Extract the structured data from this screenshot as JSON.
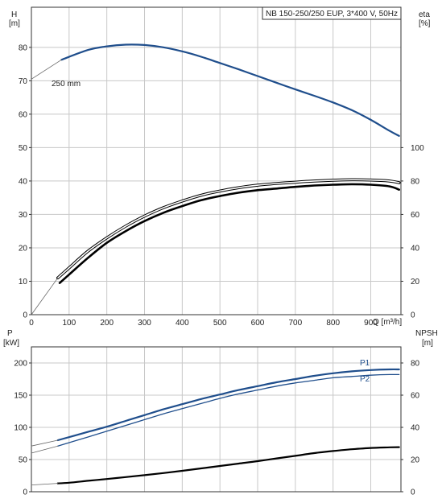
{
  "colors": {
    "background": "#ffffff",
    "grid": "#c8c8c8",
    "axis": "#333333",
    "curve_blue": "#1f4e8c",
    "curve_black": "#000000",
    "thin": "#666666"
  },
  "chart_data": [
    {
      "type": "line",
      "title": "NB 150-250/250 EUP, 3*400 V, 50Hz",
      "xlabel": "Q [m³/h]",
      "xlim": [
        0,
        980
      ],
      "xticks": [
        0,
        100,
        200,
        300,
        400,
        500,
        600,
        700,
        800,
        900
      ],
      "grid": true,
      "left_axis": {
        "label_line1": "H",
        "label_line2": "[m]",
        "ylim": [
          0,
          92
        ],
        "ticks": [
          0,
          10,
          20,
          30,
          40,
          50,
          60,
          70,
          80
        ]
      },
      "right_axis": {
        "label_line1": "eta",
        "label_line2": "[%]",
        "ylim": [
          0,
          184
        ],
        "ticks": [
          0,
          20,
          40,
          60,
          80,
          100
        ]
      },
      "annotations": [
        {
          "text": "250 mm"
        }
      ],
      "series": [
        {
          "axis": "left",
          "style": "blue",
          "x": [
            80,
            150,
            200,
            250,
            300,
            350,
            400,
            450,
            500,
            550,
            600,
            650,
            700,
            750,
            800,
            850,
            900,
            950,
            975
          ],
          "y": [
            76.3,
            79.2,
            80.3,
            80.8,
            80.7,
            80.0,
            78.8,
            77.2,
            75.3,
            73.4,
            71.4,
            69.4,
            67.4,
            65.5,
            63.5,
            61.2,
            58.3,
            55.0,
            53.5
          ]
        },
        {
          "axis": "left",
          "style": "thin",
          "x": [
            0,
            80
          ],
          "y": [
            70.5,
            76.3
          ]
        },
        {
          "axis": "right",
          "style": "outline",
          "x": [
            70,
            100,
            150,
            200,
            250,
            300,
            350,
            400,
            450,
            500,
            550,
            600,
            650,
            700,
            750,
            800,
            850,
            900,
            950,
            975
          ],
          "y": [
            22,
            28,
            38,
            46,
            53,
            59,
            64,
            68,
            71.5,
            74,
            76,
            77.5,
            78.5,
            79.3,
            80,
            80.5,
            80.8,
            80.6,
            80,
            79
          ]
        },
        {
          "axis": "right",
          "style": "bold",
          "x": [
            75,
            100,
            150,
            200,
            250,
            300,
            350,
            400,
            450,
            500,
            550,
            600,
            650,
            700,
            750,
            800,
            850,
            900,
            950,
            975
          ],
          "y": [
            19,
            24,
            34,
            43,
            50,
            56,
            61,
            65,
            68.5,
            71,
            73,
            74.5,
            75.5,
            76.5,
            77.3,
            77.8,
            78.1,
            77.8,
            76.8,
            74.8
          ]
        },
        {
          "axis": "right",
          "style": "thin",
          "x": [
            0,
            70
          ],
          "y": [
            0,
            22
          ]
        }
      ]
    },
    {
      "type": "line",
      "xlim": [
        0,
        980
      ],
      "grid": true,
      "left_axis": {
        "label_line1": "P",
        "label_line2": "[kW]",
        "ylim": [
          0,
          225
        ],
        "ticks": [
          0,
          50,
          100,
          150,
          200
        ]
      },
      "right_axis": {
        "label_line1": "NPSH",
        "label_line2": "[m]",
        "ylim": [
          0,
          90
        ],
        "ticks": [
          0,
          20,
          40,
          60,
          80
        ]
      },
      "series": [
        {
          "axis": "left",
          "name": "P1",
          "style": "blue",
          "x": [
            70,
            150,
            200,
            250,
            300,
            350,
            400,
            450,
            500,
            550,
            600,
            650,
            700,
            750,
            800,
            850,
            900,
            950,
            975
          ],
          "y": [
            80,
            93,
            101,
            110,
            119,
            128,
            136,
            144,
            151,
            158,
            164,
            170,
            175,
            180,
            184,
            187,
            189,
            190,
            190
          ]
        },
        {
          "axis": "left",
          "name": "P2",
          "style": "blue_thin",
          "x": [
            70,
            150,
            200,
            250,
            300,
            350,
            400,
            450,
            500,
            550,
            600,
            650,
            700,
            750,
            800,
            850,
            900,
            950,
            975
          ],
          "y": [
            71,
            85,
            94,
            103,
            112,
            121,
            129,
            137,
            145,
            152,
            158,
            164,
            169,
            173,
            177,
            179,
            181,
            182,
            182
          ]
        },
        {
          "axis": "left",
          "style": "thin",
          "x": [
            0,
            70
          ],
          "y": [
            71,
            80
          ]
        },
        {
          "axis": "left",
          "style": "thin",
          "x": [
            0,
            70
          ],
          "y": [
            60,
            71
          ]
        },
        {
          "axis": "right",
          "style": "black",
          "x": [
            70,
            100,
            150,
            200,
            250,
            300,
            350,
            400,
            450,
            500,
            550,
            600,
            650,
            700,
            750,
            800,
            850,
            900,
            950,
            975
          ],
          "y": [
            5.2,
            5.6,
            6.8,
            7.9,
            9.1,
            10.3,
            11.6,
            13.0,
            14.5,
            16.0,
            17.5,
            19.0,
            20.7,
            22.3,
            24.0,
            25.3,
            26.4,
            27.2,
            27.6,
            27.7
          ]
        },
        {
          "axis": "right",
          "style": "thin",
          "x": [
            0,
            70
          ],
          "y": [
            4.2,
            5.2
          ]
        }
      ]
    }
  ]
}
